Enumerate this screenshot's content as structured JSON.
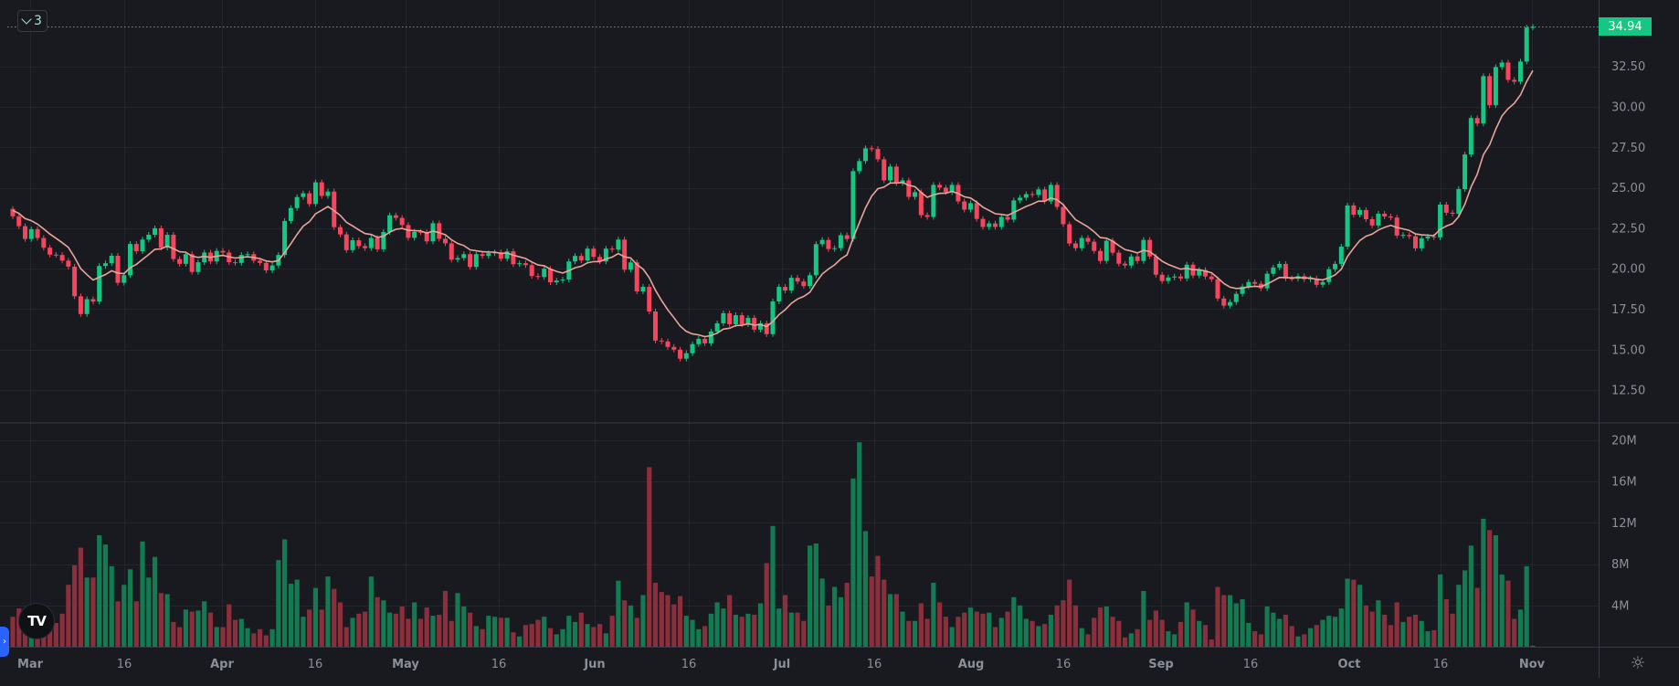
{
  "collapse_button": {
    "count": "3"
  },
  "last_price": {
    "label": "34.94",
    "color": "#16c784"
  },
  "colors": {
    "up": "#16c784",
    "down": "#f6465d",
    "volume_up": "#137a52",
    "volume_down": "#8c2f3c",
    "moving_average": "#e8a598",
    "background": "#181a1f",
    "grid": "#22252b"
  },
  "chart_data": [
    {
      "type": "candlestick",
      "pane": "price",
      "y_ticks": [
        "32.50",
        "30.00",
        "27.50",
        "25.00",
        "22.50",
        "20.00",
        "17.50",
        "15.00",
        "12.50"
      ],
      "ylim": [
        11.5,
        36.6
      ],
      "x_ticks": [
        "Mar",
        "16",
        "Apr",
        "16",
        "May",
        "16",
        "Jun",
        "16",
        "Jul",
        "16",
        "Aug",
        "16",
        "Sep",
        "16",
        "Oct",
        "16",
        "Nov"
      ],
      "grid": true,
      "first_open": 23.7,
      "closes": [
        23.24,
        22.63,
        21.84,
        22.44,
        21.9,
        21.3,
        20.87,
        20.85,
        20.5,
        20.13,
        18.3,
        17.2,
        18.12,
        17.97,
        20.17,
        20.34,
        20.8,
        19.13,
        19.6,
        21.53,
        21.08,
        21.8,
        22.1,
        22.5,
        21.3,
        22.1,
        20.6,
        20.3,
        20.9,
        19.8,
        20.4,
        21.0,
        20.45,
        21.1,
        21.0,
        20.4,
        20.36,
        20.85,
        20.9,
        20.5,
        20.36,
        19.9,
        20.2,
        20.85,
        22.95,
        23.75,
        24.43,
        24.66,
        24.0,
        25.34,
        24.5,
        24.77,
        22.57,
        22.12,
        21.15,
        21.76,
        21.4,
        21.27,
        21.9,
        21.2,
        22.27,
        23.3,
        23.14,
        22.7,
        21.91,
        22.28,
        22.25,
        21.69,
        22.81,
        21.85,
        21.57,
        20.56,
        20.66,
        20.9,
        20.11,
        20.9,
        20.79,
        20.96,
        21.01,
        20.62,
        21.07,
        20.28,
        20.34,
        20.22,
        19.55,
        19.49,
        20.0,
        19.16,
        19.27,
        19.33,
        20.45,
        20.79,
        20.51,
        21.24,
        20.73,
        20.45,
        21.24,
        21.18,
        21.8,
        19.94,
        20.39,
        18.6,
        18.88,
        17.36,
        15.56,
        15.51,
        15.17,
        15.0,
        14.44,
        14.78,
        15.34,
        15.67,
        15.39,
        16.12,
        16.63,
        17.25,
        16.57,
        17.13,
        16.57,
        16.97,
        16.24,
        16.63,
        15.96,
        17.98,
        18.88,
        18.65,
        19.44,
        19.21,
        18.93,
        19.6,
        21.52,
        21.78,
        21.22,
        21.27,
        22.07,
        21.84,
        26.03,
        26.65,
        27.44,
        27.4,
        26.76,
        25.46,
        26.31,
        25.29,
        25.46,
        24.44,
        24.73,
        23.31,
        23.2,
        25.18,
        25.01,
        24.73,
        25.18,
        24.16,
        23.65,
        24.05,
        23.08,
        22.58,
        22.8,
        22.58,
        23.2,
        23.03,
        24.22,
        24.39,
        24.61,
        24.56,
        24.9,
        24.16,
        25.18,
        23.82,
        22.75,
        21.56,
        21.27,
        21.9,
        21.67,
        21.1,
        20.48,
        21.73,
        20.99,
        20.31,
        20.2,
        20.76,
        20.48,
        21.78,
        20.76,
        19.63,
        19.24,
        19.46,
        19.52,
        19.4,
        20.25,
        19.58,
        19.92,
        19.52,
        19.35,
        18.16,
        17.72,
        17.94,
        18.45,
        18.9,
        19.18,
        19.07,
        18.79,
        19.69,
        20.08,
        20.3,
        19.4,
        19.38,
        19.54,
        19.35,
        19.4,
        19.01,
        19.18,
        19.97,
        20.3,
        21.37,
        23.91,
        23.34,
        23.63,
        23.06,
        22.67,
        23.4,
        23.23,
        23.16,
        22.05,
        22.09,
        22.01,
        21.26,
        21.88,
        21.99,
        21.94,
        23.96,
        23.46,
        23.4,
        24.92,
        27.06,
        29.31,
        28.97,
        31.9,
        30.1,
        32.46,
        32.74,
        31.67,
        31.56,
        32.8,
        34.9,
        34.94
      ],
      "moving_average": {
        "type": "EMA",
        "period": 9
      }
    },
    {
      "type": "bar",
      "pane": "volume",
      "unit": "M",
      "y_ticks": [
        "20M",
        "16M",
        "12M",
        "8M",
        "4M"
      ],
      "ylim": [
        0,
        22
      ],
      "values": [
        2.9,
        3.7,
        2.5,
        2,
        1.5,
        2,
        1.9,
        2.3,
        3.2,
        6,
        7.9,
        9.6,
        6.7,
        6.7,
        10.8,
        9.9,
        7.8,
        4.4,
        6,
        7.5,
        4.4,
        10.2,
        6.7,
        8.7,
        5.2,
        5.1,
        2.4,
        1.9,
        3.6,
        3.4,
        3.5,
        4.4,
        3.3,
        1.9,
        1.9,
        4.1,
        2.6,
        2.7,
        1.8,
        1.3,
        1.7,
        1.1,
        1.7,
        8.4,
        10.4,
        6.1,
        6.5,
        2.9,
        3.6,
        5.7,
        3.6,
        6.8,
        5.6,
        4.3,
        1.9,
        2.8,
        3.2,
        3.4,
        6.8,
        4.8,
        4.5,
        3.3,
        3.2,
        3.9,
        2.7,
        4.3,
        2.7,
        3.8,
        3.0,
        3.1,
        5.4,
        2.5,
        5.2,
        3.9,
        3.3,
        2.0,
        1.7,
        3.0,
        2.9,
        2.8,
        2.8,
        1.4,
        1.0,
        2.1,
        2.2,
        2.6,
        2.9,
        1.8,
        1.2,
        1.7,
        3.0,
        2.4,
        3.3,
        2.2,
        1.9,
        2.2,
        1.3,
        3.0,
        6.4,
        4.5,
        4.0,
        2.8,
        5.0,
        17.4,
        6.2,
        5.3,
        5.0,
        4.1,
        4.9,
        3.0,
        2.6,
        1.7,
        2.0,
        3.2,
        4.3,
        3.7,
        5.0,
        3.1,
        2.9,
        3.2,
        3.1,
        4.2,
        8.1,
        11.7,
        3.7,
        5.0,
        3.3,
        3.3,
        2.5,
        9.8,
        10.0,
        6.6,
        4.0,
        5.8,
        4.8,
        6.2,
        16.3,
        19.8,
        11.2,
        6.8,
        8.8,
        6.5,
        5.1,
        5.1,
        3.4,
        2.5,
        2.5,
        4.2,
        2.7,
        6.2,
        4.3,
        2.9,
        1.9,
        2.9,
        3.3,
        3.8,
        3.4,
        3.2,
        3.3,
        1.9,
        2.8,
        3.4,
        4.8,
        4.0,
        2.7,
        2.5,
        2.0,
        2.2,
        3.1,
        4.0,
        4.5,
        6.5,
        4.0,
        1.8,
        1.2,
        2.8,
        3.8,
        3.9,
        2.9,
        2.5,
        0.9,
        1.3,
        1.7,
        5.4,
        2.6,
        3.5,
        2.6,
        1.5,
        1.2,
        2.4,
        4.3,
        3.6,
        2.5,
        2.1,
        0.7,
        5.8,
        5.0,
        5.0,
        4.2,
        4.6,
        2.3,
        1.5,
        1.2,
        3.9,
        3.3,
        2.7,
        3.1,
        2.0,
        1.0,
        1.2,
        1.8,
        2.1,
        2.6,
        3.0,
        2.9,
        3.7,
        6.6,
        6.5,
        6.0,
        4.0,
        3.4,
        4.5,
        3.1,
        2.1,
        4.3,
        2.4,
        2.9,
        3.1,
        2.5,
        1.5,
        1.6,
        7.0,
        4.6,
        3.2,
        6.0,
        7.4,
        9.8,
        5.7,
        12.4,
        11.3,
        10.8,
        7.0,
        6.4,
        2.7,
        3.6,
        7.8,
        0.1
      ]
    }
  ]
}
